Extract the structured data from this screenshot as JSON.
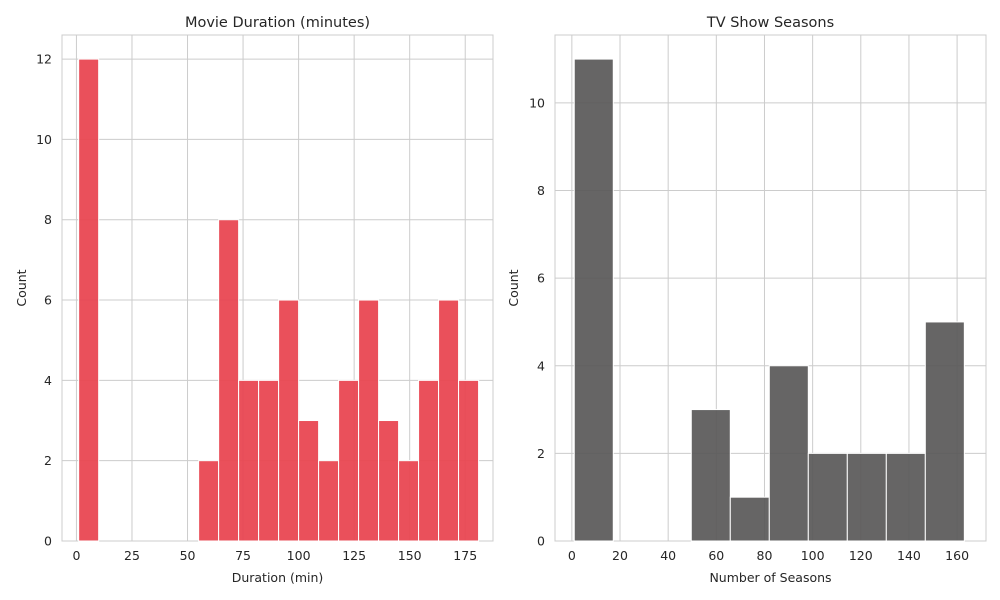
{
  "colors": {
    "background": "#ffffff",
    "grid": "#cccccc",
    "text": "#262626",
    "bar_edge": "#ffffff"
  },
  "chart_data": [
    {
      "type": "bar",
      "title": "Movie Duration (minutes)",
      "xlabel": "Duration (min)",
      "ylabel": "Count",
      "xlim": [
        -6.5,
        187.5
      ],
      "ylim": [
        0,
        12.6
      ],
      "xticks": [
        0,
        25,
        50,
        75,
        100,
        125,
        150,
        175
      ],
      "yticks": [
        0,
        2,
        4,
        6,
        8,
        10,
        12
      ],
      "grid": true,
      "color": "#e8434f",
      "bins": [
        {
          "x0": 1,
          "x1": 10,
          "count": 12
        },
        {
          "x0": 55,
          "x1": 64,
          "count": 2
        },
        {
          "x0": 64,
          "x1": 73,
          "count": 8
        },
        {
          "x0": 73,
          "x1": 82,
          "count": 4
        },
        {
          "x0": 82,
          "x1": 91,
          "count": 4
        },
        {
          "x0": 91,
          "x1": 100,
          "count": 6
        },
        {
          "x0": 100,
          "x1": 109,
          "count": 3
        },
        {
          "x0": 109,
          "x1": 118,
          "count": 2
        },
        {
          "x0": 118,
          "x1": 127,
          "count": 4
        },
        {
          "x0": 127,
          "x1": 136,
          "count": 6
        },
        {
          "x0": 136,
          "x1": 145,
          "count": 3
        },
        {
          "x0": 145,
          "x1": 154,
          "count": 2
        },
        {
          "x0": 154,
          "x1": 163,
          "count": 4
        },
        {
          "x0": 163,
          "x1": 172,
          "count": 6
        },
        {
          "x0": 172,
          "x1": 181,
          "count": 4
        }
      ]
    },
    {
      "type": "bar",
      "title": "TV Show Seasons",
      "xlabel": "Number of Seasons",
      "ylabel": "Count",
      "xlim": [
        -7,
        172
      ],
      "ylim": [
        0,
        11.55
      ],
      "xticks": [
        0,
        20,
        40,
        60,
        80,
        100,
        120,
        140,
        160
      ],
      "yticks": [
        0,
        2,
        4,
        6,
        8,
        10
      ],
      "grid": true,
      "color": "#595858",
      "bins": [
        {
          "x0": 1,
          "x1": 17.2,
          "count": 11
        },
        {
          "x0": 49.6,
          "x1": 65.8,
          "count": 3
        },
        {
          "x0": 65.8,
          "x1": 82,
          "count": 1
        },
        {
          "x0": 82,
          "x1": 98.2,
          "count": 4
        },
        {
          "x0": 98.2,
          "x1": 114.4,
          "count": 2
        },
        {
          "x0": 114.4,
          "x1": 130.6,
          "count": 2
        },
        {
          "x0": 130.6,
          "x1": 146.8,
          "count": 2
        },
        {
          "x0": 146.8,
          "x1": 163,
          "count": 5
        }
      ]
    }
  ]
}
